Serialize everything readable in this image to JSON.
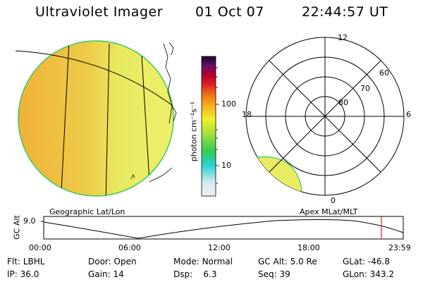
{
  "header": {
    "instrument": "Ultraviolet Imager",
    "date": "01 Oct 07",
    "time": "22:44:57 UT"
  },
  "colorbar": {
    "unit_label": "photon cm⁻²s⁻¹",
    "tick_100": "100",
    "tick_10": "10"
  },
  "polar": {
    "mlt_labels": {
      "top": "12",
      "left": "18",
      "right": "6",
      "bottom": "0"
    },
    "lat_labels": [
      "60",
      "70",
      "80"
    ]
  },
  "map_labels": {
    "geographic": "Geographic Lat/Lon",
    "apex": "Apex MLat/MLT"
  },
  "altitude_plot": {
    "ylabel": "GC Alt",
    "ytick": "9.0",
    "xticks": [
      "00:00",
      "06:00",
      "12:00",
      "18:00",
      "23:59"
    ],
    "marker_color": "#d0202a"
  },
  "status": {
    "filter": {
      "label": "Flt:",
      "value": "LBHL"
    },
    "ip": {
      "label": "IP:",
      "value": "36.0"
    },
    "door": {
      "label": "Door:",
      "value": "Open"
    },
    "gain": {
      "label": "Gain:",
      "value": "14"
    },
    "mode": {
      "label": "Mode:",
      "value": "Normal"
    },
    "dsp": {
      "label": "Dsp:",
      "value": "6.3"
    },
    "gc_alt": {
      "label": "GC Alt:",
      "value": "5.0 Re"
    },
    "seq": {
      "label": "Seq:",
      "value": "39"
    },
    "glat": {
      "label": "GLat:",
      "value": "-46.8"
    },
    "glon": {
      "label": "GLon:",
      "value": "343.2"
    }
  },
  "colors": {
    "disk_fill": "#e9e45a",
    "disk_edge": "#3cc85a",
    "disk_bright": "#f0b83a"
  }
}
